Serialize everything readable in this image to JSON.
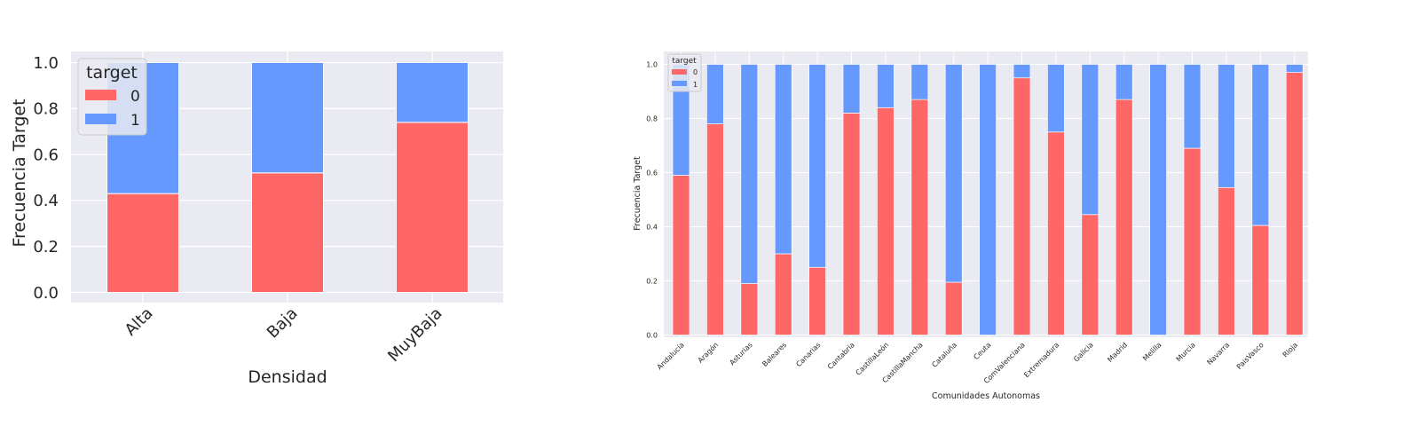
{
  "chart_data": [
    {
      "type": "bar",
      "stacked": true,
      "categories": [
        "Alta",
        "Baja",
        "MuyBaja"
      ],
      "series": [
        {
          "name": "0",
          "values": [
            0.43,
            0.52,
            0.74
          ]
        },
        {
          "name": "1",
          "values": [
            0.57,
            0.48,
            0.26
          ]
        }
      ],
      "xlabel": "Densidad",
      "ylabel": "Frecuencia Target",
      "ylim": [
        0,
        1
      ],
      "yticks": [
        "0.0",
        "0.2",
        "0.4",
        "0.6",
        "0.8",
        "1.0"
      ],
      "legend": {
        "title": "target",
        "placement": "top-left"
      },
      "grid": true
    },
    {
      "type": "bar",
      "stacked": true,
      "categories": [
        "Andalucía",
        "Aragón",
        "Asturias",
        "Baleares",
        "Canarias",
        "Cantabria",
        "CastillaLeón",
        "CastillaMancha",
        "Cataluña",
        "Ceuta",
        "ComValenciana",
        "Extremadura",
        "Galicia",
        "Madrid",
        "Melilla",
        "Murcia",
        "Navarra",
        "PaisVasco",
        "Rioja"
      ],
      "series": [
        {
          "name": "0",
          "values": [
            0.59,
            0.78,
            0.19,
            0.3,
            0.25,
            0.82,
            0.84,
            0.87,
            0.195,
            0.0,
            0.95,
            0.75,
            0.445,
            0.87,
            0.0,
            0.69,
            0.545,
            0.405,
            0.97
          ]
        },
        {
          "name": "1",
          "values": [
            0.41,
            0.22,
            0.81,
            0.7,
            0.75,
            0.18,
            0.16,
            0.13,
            0.805,
            1.0,
            0.05,
            0.25,
            0.555,
            0.13,
            1.0,
            0.31,
            0.455,
            0.595,
            0.03
          ]
        }
      ],
      "xlabel": "Comunidades Autonomas",
      "ylabel": "Frecuencia Target",
      "ylim": [
        0,
        1
      ],
      "yticks": [
        "0.0",
        "0.2",
        "0.4",
        "0.6",
        "0.8",
        "1.0"
      ],
      "legend": {
        "title": "target",
        "placement": "top-left"
      },
      "grid": true
    }
  ],
  "colors": {
    "series0": "#ff6666",
    "series1": "#6699ff",
    "plot_bg": "#eaeaf2",
    "grid": "#ffffff"
  }
}
